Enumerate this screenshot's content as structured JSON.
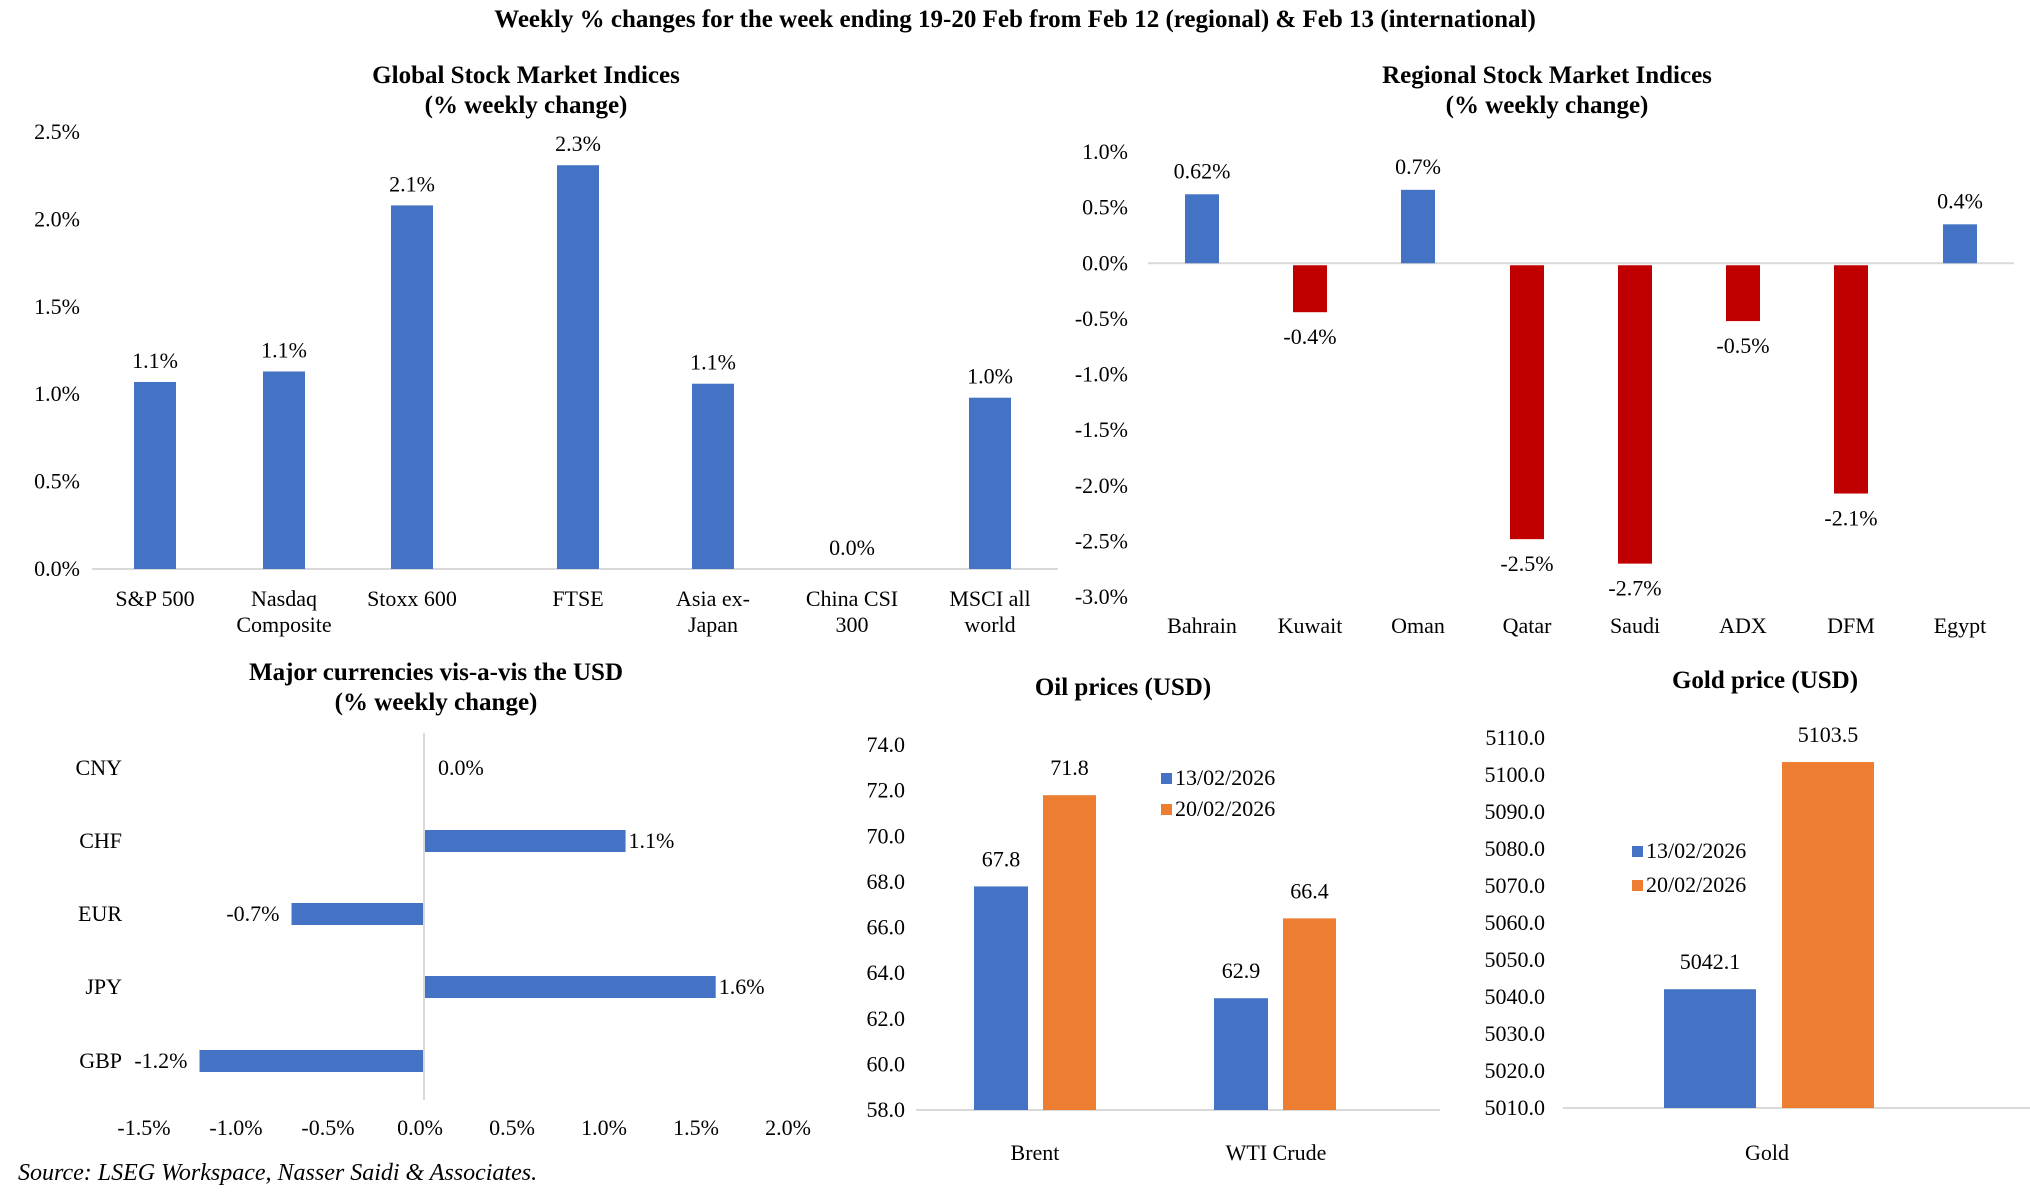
{
  "page": {
    "main_title": "Weekly % changes for the week ending 19-20 Feb from Feb 12 (regional) & Feb 13 (international)",
    "source": "Source: LSEG Workspace, Nasser Saidi & Associates."
  },
  "colors": {
    "positive": "#4472C4",
    "negative": "#C00000",
    "series_a": "#4472C4",
    "series_b": "#ED7D31",
    "axis": "#D9D9D9"
  },
  "chart_data": [
    {
      "id": "global",
      "type": "bar",
      "title": [
        "Global Stock Market Indices",
        "(% weekly change)"
      ],
      "categories": [
        [
          "S&P 500"
        ],
        [
          "Nasdaq",
          "Composite"
        ],
        [
          "Stoxx 600"
        ],
        [
          "FTSE"
        ],
        [
          "Asia ex-",
          "Japan"
        ],
        [
          "China CSI",
          "300"
        ],
        [
          "MSCI all",
          "world"
        ]
      ],
      "values": [
        1.07,
        1.13,
        2.08,
        2.31,
        1.06,
        0.0,
        0.98
      ],
      "data_labels": [
        "1.1%",
        "1.1%",
        "2.1%",
        "2.3%",
        "1.1%",
        "0.0%",
        "1.0%"
      ],
      "yticks": [
        "0.0%",
        "0.5%",
        "1.0%",
        "1.5%",
        "2.0%",
        "2.5%"
      ],
      "ylim": [
        0,
        2.5
      ],
      "xlabel": "",
      "ylabel": "",
      "grid": false,
      "legend": "none"
    },
    {
      "id": "regional",
      "type": "bar",
      "title": [
        "Regional Stock Market Indices",
        "(% weekly change)"
      ],
      "categories": [
        "Bahrain",
        "Kuwait",
        "Oman",
        "Qatar",
        "Saudi",
        "ADX",
        "DFM",
        "Egypt"
      ],
      "values": [
        0.62,
        -0.44,
        0.66,
        -2.48,
        -2.7,
        -0.52,
        -2.07,
        0.35
      ],
      "data_labels": [
        "0.62%",
        "-0.4%",
        "0.7%",
        "-2.5%",
        "-2.7%",
        "-0.5%",
        "-2.1%",
        "0.4%"
      ],
      "yticks": [
        "-3.0%",
        "-2.5%",
        "-2.0%",
        "-1.5%",
        "-1.0%",
        "-0.5%",
        "0.0%",
        "0.5%",
        "1.0%"
      ],
      "ylim": [
        -3.0,
        1.0
      ],
      "xlabel": "",
      "ylabel": "",
      "grid": false,
      "legend": "none"
    },
    {
      "id": "currencies",
      "type": "bar",
      "orientation": "horizontal",
      "title": [
        "Major currencies vis-a-vis the USD",
        "(% weekly change)"
      ],
      "categories": [
        "CNY",
        "CHF",
        "EUR",
        "JPY",
        "GBP"
      ],
      "values": [
        0.0,
        1.09,
        -0.72,
        1.58,
        -1.22
      ],
      "data_labels": [
        "0.0%",
        "1.1%",
        "-0.7%",
        "1.6%",
        "-1.2%"
      ],
      "xticks": [
        "-1.5%",
        "-1.0%",
        "-0.5%",
        "0.0%",
        "0.5%",
        "1.0%",
        "1.5%",
        "2.0%"
      ],
      "xlim": [
        -1.5,
        2.0
      ],
      "xlabel": "",
      "ylabel": "",
      "grid": false,
      "legend": "none"
    },
    {
      "id": "oil",
      "type": "bar",
      "title": [
        "Oil prices (USD)"
      ],
      "categories": [
        "Brent",
        "WTI Crude"
      ],
      "series": [
        {
          "name": "13/02/2026",
          "values": [
            67.8,
            62.9
          ],
          "data_labels": [
            "67.8",
            "62.9"
          ]
        },
        {
          "name": "20/02/2026",
          "values": [
            71.8,
            66.4
          ],
          "data_labels": [
            "71.8",
            "66.4"
          ]
        }
      ],
      "yticks": [
        "58.0",
        "60.0",
        "62.0",
        "64.0",
        "66.0",
        "68.0",
        "70.0",
        "72.0",
        "74.0"
      ],
      "ylim": [
        58.0,
        74.0
      ],
      "xlabel": "",
      "ylabel": "",
      "grid": false,
      "legend": "top-right"
    },
    {
      "id": "gold",
      "type": "bar",
      "title": [
        "Gold price (USD)"
      ],
      "categories": [
        "Gold"
      ],
      "series": [
        {
          "name": "13/02/2026",
          "values": [
            5042.1
          ],
          "data_labels": [
            "5042.1"
          ]
        },
        {
          "name": "20/02/2026",
          "values": [
            5103.5
          ],
          "data_labels": [
            "5103.5"
          ]
        }
      ],
      "yticks": [
        "5010.0",
        "5020.0",
        "5030.0",
        "5040.0",
        "5050.0",
        "5060.0",
        "5070.0",
        "5080.0",
        "5090.0",
        "5100.0",
        "5110.0"
      ],
      "ylim": [
        5010.0,
        5110.0
      ],
      "xlabel": "",
      "ylabel": "",
      "grid": false,
      "legend": "center-left"
    }
  ]
}
